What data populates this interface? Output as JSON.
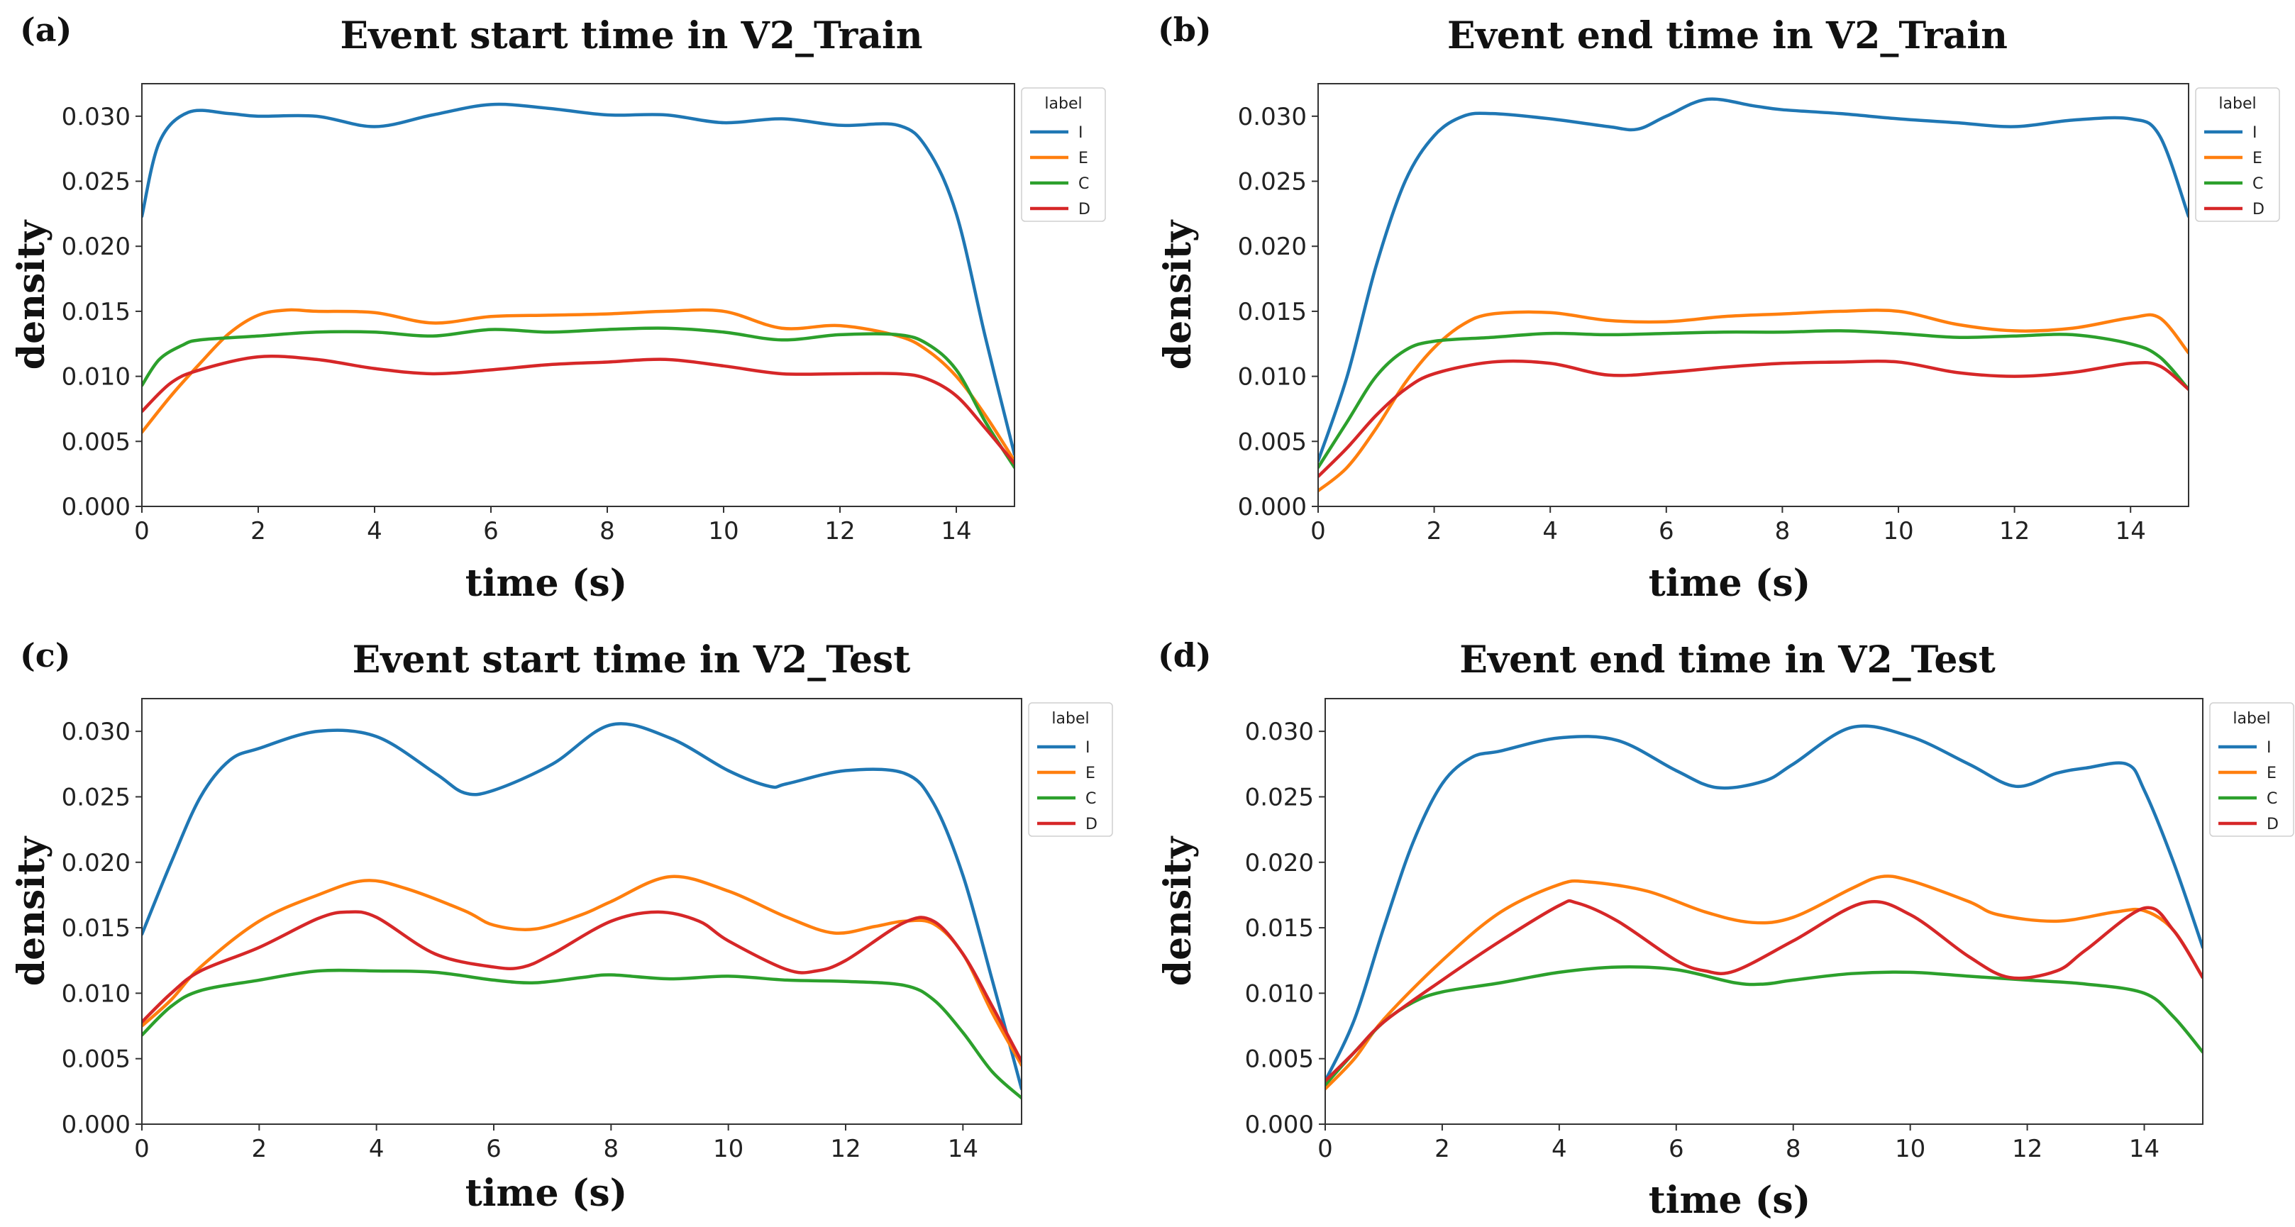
{
  "colors": {
    "I": "#1f77b4",
    "E": "#ff7f0e",
    "C": "#2ca02c",
    "D": "#d62728"
  },
  "chart_data": [
    {
      "type": "line",
      "panel": "(a)",
      "title": "Event start time in V2_Train",
      "xlabel": "time (s)",
      "ylabel": "density",
      "xlim": [
        0,
        15
      ],
      "ylim": [
        0,
        0.0325
      ],
      "xticks": [
        0,
        2,
        4,
        6,
        8,
        10,
        12,
        14
      ],
      "yticks": [
        "0.000",
        "0.005",
        "0.010",
        "0.015",
        "0.020",
        "0.025",
        "0.030"
      ],
      "legend_title": "label",
      "legend_position": "outside-right-top",
      "series": [
        {
          "name": "I",
          "x": [
            0,
            0.3,
            0.8,
            1.5,
            2,
            3,
            4,
            5,
            6,
            7,
            8,
            9,
            10,
            11,
            12,
            13,
            13.5,
            14,
            14.5,
            15
          ],
          "y": [
            0.0223,
            0.028,
            0.0303,
            0.0302,
            0.03,
            0.03,
            0.0292,
            0.0301,
            0.0309,
            0.0306,
            0.0301,
            0.0301,
            0.0295,
            0.0298,
            0.0293,
            0.0293,
            0.0275,
            0.0225,
            0.013,
            0.004
          ]
        },
        {
          "name": "E",
          "x": [
            0,
            0.5,
            1,
            1.5,
            2,
            2.5,
            3,
            4,
            5,
            6,
            7,
            8,
            9,
            10,
            11,
            12,
            13,
            13.5,
            14,
            14.5,
            15
          ],
          "y": [
            0.0057,
            0.0085,
            0.011,
            0.0133,
            0.0147,
            0.0151,
            0.015,
            0.0149,
            0.0141,
            0.0146,
            0.0147,
            0.0148,
            0.015,
            0.015,
            0.0137,
            0.0139,
            0.0131,
            0.012,
            0.01,
            0.007,
            0.0035
          ]
        },
        {
          "name": "C",
          "x": [
            0,
            0.3,
            0.7,
            1,
            2,
            3,
            4,
            5,
            6,
            7,
            8,
            9,
            10,
            11,
            12,
            13,
            13.5,
            14,
            14.5,
            15
          ],
          "y": [
            0.0093,
            0.0113,
            0.0124,
            0.0128,
            0.0131,
            0.0134,
            0.0134,
            0.0131,
            0.0136,
            0.0134,
            0.0136,
            0.0137,
            0.0134,
            0.0128,
            0.0132,
            0.0132,
            0.0125,
            0.0105,
            0.0065,
            0.003
          ]
        },
        {
          "name": "D",
          "x": [
            0,
            0.5,
            1,
            2,
            3,
            4,
            5,
            6,
            7,
            8,
            9,
            10,
            11,
            12,
            13,
            13.5,
            14,
            14.5,
            15
          ],
          "y": [
            0.0073,
            0.0095,
            0.0105,
            0.0115,
            0.0113,
            0.0106,
            0.0102,
            0.0105,
            0.0109,
            0.0111,
            0.0113,
            0.0108,
            0.0102,
            0.0102,
            0.0102,
            0.0098,
            0.0085,
            0.006,
            0.0033
          ]
        }
      ]
    },
    {
      "type": "line",
      "panel": "(b)",
      "title": "Event end time in V2_Train",
      "xlabel": "time (s)",
      "ylabel": "density",
      "xlim": [
        0,
        15
      ],
      "ylim": [
        0,
        0.0325
      ],
      "xticks": [
        0,
        2,
        4,
        6,
        8,
        10,
        12,
        14
      ],
      "yticks": [
        "0.000",
        "0.005",
        "0.010",
        "0.015",
        "0.020",
        "0.025",
        "0.030"
      ],
      "legend_title": "label",
      "legend_position": "outside-right-top",
      "series": [
        {
          "name": "I",
          "x": [
            0,
            0.5,
            1,
            1.5,
            2,
            2.5,
            3,
            4,
            5,
            5.5,
            6,
            6.7,
            7.5,
            8,
            9,
            10,
            11,
            12,
            13,
            14,
            14.5,
            15
          ],
          "y": [
            0.0035,
            0.01,
            0.0185,
            0.025,
            0.0285,
            0.03,
            0.0302,
            0.0298,
            0.0292,
            0.029,
            0.03,
            0.0313,
            0.0308,
            0.0305,
            0.0302,
            0.0298,
            0.0295,
            0.0292,
            0.0297,
            0.0298,
            0.0285,
            0.0223
          ]
        },
        {
          "name": "E",
          "x": [
            0,
            0.5,
            1,
            1.5,
            2,
            2.5,
            3,
            4,
            5,
            6,
            7,
            8,
            9,
            10,
            11,
            12,
            13,
            14,
            14.5,
            15
          ],
          "y": [
            0.0012,
            0.003,
            0.006,
            0.0095,
            0.0122,
            0.014,
            0.0148,
            0.0149,
            0.0143,
            0.0142,
            0.0146,
            0.0148,
            0.015,
            0.015,
            0.014,
            0.0135,
            0.0137,
            0.0145,
            0.0145,
            0.0118
          ]
        },
        {
          "name": "C",
          "x": [
            0,
            0.5,
            1,
            1.5,
            2,
            3,
            4,
            5,
            6,
            7,
            8,
            9,
            10,
            11,
            12,
            13,
            14,
            14.5,
            15
          ],
          "y": [
            0.003,
            0.0065,
            0.01,
            0.012,
            0.0127,
            0.013,
            0.0133,
            0.0132,
            0.0133,
            0.0134,
            0.0134,
            0.0135,
            0.0133,
            0.013,
            0.0131,
            0.0132,
            0.0125,
            0.0115,
            0.009
          ]
        },
        {
          "name": "D",
          "x": [
            0,
            0.5,
            1,
            1.5,
            2,
            3,
            4,
            5,
            6,
            7,
            8,
            9,
            10,
            11,
            12,
            13,
            14,
            14.5,
            15
          ],
          "y": [
            0.0023,
            0.0045,
            0.007,
            0.009,
            0.0102,
            0.0111,
            0.011,
            0.0101,
            0.0103,
            0.0107,
            0.011,
            0.0111,
            0.0111,
            0.0103,
            0.01,
            0.0103,
            0.011,
            0.0108,
            0.009
          ]
        }
      ]
    },
    {
      "type": "line",
      "panel": "(c)",
      "title": "Event start time in V2_Test",
      "xlabel": "time (s)",
      "ylabel": "density",
      "xlim": [
        0,
        15
      ],
      "ylim": [
        0,
        0.0325
      ],
      "xticks": [
        0,
        2,
        4,
        6,
        8,
        10,
        12,
        14
      ],
      "yticks": [
        "0.000",
        "0.005",
        "0.010",
        "0.015",
        "0.020",
        "0.025",
        "0.030"
      ],
      "legend_title": "label",
      "legend_position": "outside-right-top",
      "series": [
        {
          "name": "I",
          "x": [
            0,
            0.5,
            1,
            1.5,
            2,
            3,
            4,
            5,
            5.5,
            6,
            7,
            8,
            9,
            10,
            10.7,
            11,
            12,
            13,
            13.5,
            14,
            14.5,
            15
          ],
          "y": [
            0.0145,
            0.02,
            0.025,
            0.0278,
            0.0287,
            0.03,
            0.0296,
            0.0268,
            0.0253,
            0.0255,
            0.0275,
            0.0305,
            0.0295,
            0.027,
            0.0258,
            0.026,
            0.027,
            0.0268,
            0.0245,
            0.019,
            0.011,
            0.0027
          ]
        },
        {
          "name": "E",
          "x": [
            0,
            0.5,
            1,
            2,
            3,
            3.8,
            4.5,
            5.5,
            6,
            6.7,
            7.5,
            8,
            9,
            10,
            11,
            11.8,
            12.5,
            13,
            13.5,
            14,
            14.5,
            15
          ],
          "y": [
            0.0075,
            0.0095,
            0.012,
            0.0155,
            0.0175,
            0.0186,
            0.018,
            0.0163,
            0.0152,
            0.0149,
            0.016,
            0.017,
            0.0189,
            0.0178,
            0.0158,
            0.0146,
            0.0151,
            0.0155,
            0.0153,
            0.013,
            0.0085,
            0.0045
          ]
        },
        {
          "name": "C",
          "x": [
            0,
            0.5,
            1,
            2,
            3,
            4,
            5,
            6,
            6.7,
            7.5,
            8,
            9,
            10,
            11,
            12,
            13,
            13.5,
            14,
            14.5,
            15
          ],
          "y": [
            0.0068,
            0.009,
            0.0102,
            0.011,
            0.0117,
            0.0117,
            0.0116,
            0.011,
            0.0108,
            0.0112,
            0.0114,
            0.0111,
            0.0113,
            0.011,
            0.0109,
            0.0106,
            0.0095,
            0.007,
            0.004,
            0.002
          ]
        },
        {
          "name": "D",
          "x": [
            0,
            0.5,
            1,
            2,
            3,
            3.5,
            4,
            5,
            6,
            6.5,
            7,
            8,
            8.8,
            9.5,
            10,
            11,
            11.5,
            12,
            13,
            13.5,
            14,
            14.5,
            15
          ],
          "y": [
            0.0078,
            0.01,
            0.0117,
            0.0135,
            0.0157,
            0.0162,
            0.0158,
            0.013,
            0.012,
            0.012,
            0.013,
            0.0155,
            0.0162,
            0.0155,
            0.014,
            0.0118,
            0.0117,
            0.0125,
            0.0154,
            0.0155,
            0.013,
            0.009,
            0.0048
          ]
        }
      ]
    },
    {
      "type": "line",
      "panel": "(d)",
      "title": "Event end time in V2_Test",
      "xlabel": "time (s)",
      "ylabel": "density",
      "xlim": [
        0,
        15
      ],
      "ylim": [
        0,
        0.0325
      ],
      "xticks": [
        0,
        2,
        4,
        6,
        8,
        10,
        12,
        14
      ],
      "yticks": [
        "0.000",
        "0.005",
        "0.010",
        "0.015",
        "0.020",
        "0.025",
        "0.030"
      ],
      "legend_title": "label",
      "legend_position": "outside-right-top",
      "series": [
        {
          "name": "I",
          "x": [
            0,
            0.5,
            1,
            1.5,
            2,
            2.5,
            3,
            4,
            5,
            6,
            6.7,
            7.5,
            8,
            9,
            10,
            11,
            11.8,
            12.5,
            13,
            13.7,
            14,
            14.5,
            15
          ],
          "y": [
            0.0033,
            0.008,
            0.015,
            0.0215,
            0.026,
            0.028,
            0.0285,
            0.0295,
            0.0293,
            0.027,
            0.0257,
            0.0262,
            0.0275,
            0.0303,
            0.0296,
            0.0275,
            0.0258,
            0.0268,
            0.0272,
            0.0275,
            0.0255,
            0.02,
            0.0135
          ]
        },
        {
          "name": "E",
          "x": [
            0,
            0.5,
            1,
            2,
            3,
            4,
            4.5,
            5.5,
            6.5,
            7.3,
            8,
            9,
            9.5,
            10,
            11,
            11.5,
            12.5,
            13.5,
            14,
            14.5,
            15
          ],
          "y": [
            0.0027,
            0.005,
            0.008,
            0.0125,
            0.0162,
            0.0183,
            0.0185,
            0.0178,
            0.0162,
            0.0154,
            0.0158,
            0.018,
            0.0189,
            0.0186,
            0.017,
            0.016,
            0.0155,
            0.0162,
            0.0163,
            0.0148,
            0.0112
          ]
        },
        {
          "name": "C",
          "x": [
            0,
            0.5,
            1,
            1.5,
            2,
            3,
            4,
            5,
            6,
            7,
            7.5,
            8,
            9,
            10,
            11,
            12,
            13,
            14,
            14.5,
            15
          ],
          "y": [
            0.003,
            0.0055,
            0.0078,
            0.0093,
            0.0101,
            0.0108,
            0.0116,
            0.012,
            0.0118,
            0.0108,
            0.0107,
            0.011,
            0.0115,
            0.0116,
            0.0113,
            0.011,
            0.0107,
            0.01,
            0.0082,
            0.0055
          ]
        },
        {
          "name": "D",
          "x": [
            0,
            0.5,
            1,
            2,
            3,
            4,
            4.3,
            5,
            6,
            6.5,
            7,
            8,
            9.2,
            10,
            11,
            11.7,
            12.5,
            13,
            14,
            14.5,
            15
          ],
          "y": [
            0.0033,
            0.0055,
            0.0078,
            0.011,
            0.014,
            0.0167,
            0.0169,
            0.0155,
            0.0125,
            0.0117,
            0.0117,
            0.014,
            0.0169,
            0.016,
            0.0128,
            0.0112,
            0.0117,
            0.0133,
            0.0165,
            0.0148,
            0.0112
          ]
        }
      ]
    }
  ]
}
